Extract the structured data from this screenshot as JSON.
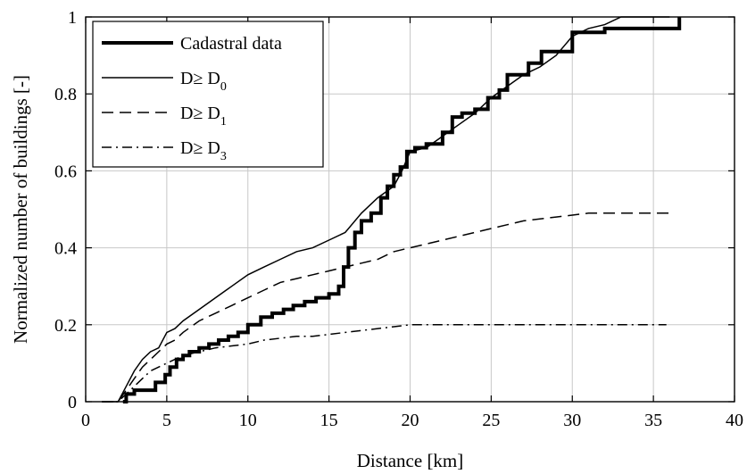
{
  "chart_data": {
    "type": "line",
    "title": "",
    "xlabel": "Distance [km]",
    "ylabel": "Normalized number of buildings [-]",
    "xlim": [
      0,
      40
    ],
    "ylim": [
      0,
      1
    ],
    "xticks": [
      0,
      5,
      10,
      15,
      20,
      25,
      30,
      35,
      40
    ],
    "yticks": [
      0,
      0.2,
      0.4,
      0.6,
      0.8,
      1
    ],
    "ytick_labels": [
      "0",
      "0.2",
      "0.4",
      "0.6",
      "0.8",
      "1"
    ],
    "grid": true,
    "legend_position": "top-left",
    "series": [
      {
        "name": "Cadastral data",
        "name_base": "Cadastral data",
        "name_sub": "",
        "style": "solid",
        "weight": "thick",
        "x": [
          2.3,
          2.5,
          2.5,
          3.0,
          3.0,
          4.3,
          4.3,
          4.9,
          4.9,
          5.2,
          5.2,
          5.6,
          5.6,
          6.0,
          6.0,
          6.4,
          6.4,
          7.0,
          7.0,
          7.6,
          7.6,
          8.2,
          8.2,
          8.8,
          8.8,
          9.4,
          9.4,
          10.0,
          10.0,
          10.8,
          10.8,
          11.5,
          11.5,
          12.2,
          12.2,
          12.8,
          12.8,
          13.5,
          13.5,
          14.2,
          14.2,
          15.0,
          15.0,
          15.6,
          15.6,
          15.9,
          15.9,
          16.2,
          16.2,
          16.6,
          16.6,
          17.0,
          17.0,
          17.6,
          17.6,
          18.2,
          18.2,
          18.6,
          18.6,
          19.0,
          19.0,
          19.4,
          19.4,
          19.8,
          19.8,
          20.3,
          20.3,
          21.0,
          21.0,
          22.0,
          22.0,
          22.6,
          22.6,
          23.2,
          23.2,
          24.0,
          24.0,
          24.8,
          24.8,
          25.5,
          25.5,
          26.0,
          26.0,
          27.3,
          27.3,
          28.1,
          28.1,
          30.0,
          30.0,
          32.0,
          32.0,
          36.6,
          36.6
        ],
        "y": [
          0.0,
          0.0,
          0.02,
          0.02,
          0.03,
          0.03,
          0.05,
          0.05,
          0.07,
          0.07,
          0.09,
          0.09,
          0.11,
          0.11,
          0.12,
          0.12,
          0.13,
          0.13,
          0.14,
          0.14,
          0.15,
          0.15,
          0.16,
          0.16,
          0.17,
          0.17,
          0.18,
          0.18,
          0.2,
          0.2,
          0.22,
          0.22,
          0.23,
          0.23,
          0.24,
          0.24,
          0.25,
          0.25,
          0.26,
          0.26,
          0.27,
          0.27,
          0.28,
          0.28,
          0.3,
          0.3,
          0.35,
          0.35,
          0.4,
          0.4,
          0.44,
          0.44,
          0.47,
          0.47,
          0.49,
          0.49,
          0.53,
          0.53,
          0.56,
          0.56,
          0.59,
          0.59,
          0.61,
          0.61,
          0.65,
          0.65,
          0.66,
          0.66,
          0.67,
          0.67,
          0.7,
          0.7,
          0.74,
          0.74,
          0.75,
          0.75,
          0.76,
          0.76,
          0.79,
          0.79,
          0.81,
          0.81,
          0.85,
          0.85,
          0.88,
          0.88,
          0.91,
          0.91,
          0.96,
          0.96,
          0.97,
          0.97,
          1.0
        ]
      },
      {
        "name": "D≥ D0",
        "name_base": "D≥  D",
        "name_sub": "0",
        "style": "solid",
        "weight": "thin",
        "x": [
          1.0,
          2.0,
          2.5,
          3.0,
          3.5,
          4.0,
          4.5,
          5.0,
          5.5,
          6.0,
          7.0,
          8.0,
          9.0,
          10.0,
          11.0,
          12.0,
          13.0,
          14.0,
          15.0,
          16.0,
          17.0,
          18.0,
          19.0,
          19.5,
          20.0,
          21.0,
          22.0,
          23.0,
          24.0,
          25.0,
          26.0,
          27.0,
          28.0,
          29.0,
          30.0,
          31.0,
          32.0,
          33.0,
          34.0,
          35.0,
          36.0
        ],
        "y": [
          0.0,
          0.0,
          0.04,
          0.08,
          0.11,
          0.13,
          0.14,
          0.18,
          0.19,
          0.21,
          0.24,
          0.27,
          0.3,
          0.33,
          0.35,
          0.37,
          0.39,
          0.4,
          0.42,
          0.44,
          0.49,
          0.53,
          0.56,
          0.6,
          0.65,
          0.66,
          0.69,
          0.72,
          0.75,
          0.79,
          0.82,
          0.85,
          0.87,
          0.9,
          0.95,
          0.97,
          0.98,
          1.0,
          1.0,
          1.0,
          1.0
        ]
      },
      {
        "name": "D≥ D1",
        "name_base": "D≥  D",
        "name_sub": "1",
        "style": "dashed",
        "weight": "thin",
        "x": [
          1.0,
          2.0,
          2.5,
          3.0,
          3.5,
          4.0,
          4.5,
          5.0,
          5.5,
          6.0,
          7.0,
          8.0,
          9.0,
          10.0,
          11.0,
          12.0,
          13.0,
          14.0,
          15.0,
          16.0,
          17.0,
          18.0,
          19.0,
          20.0,
          21.0,
          22.0,
          23.0,
          24.0,
          25.0,
          26.0,
          27.0,
          28.0,
          29.0,
          30.0,
          31.0,
          32.0,
          33.0,
          34.0,
          35.0,
          36.0
        ],
        "y": [
          0.0,
          0.0,
          0.03,
          0.06,
          0.09,
          0.11,
          0.13,
          0.15,
          0.16,
          0.18,
          0.21,
          0.23,
          0.25,
          0.27,
          0.29,
          0.31,
          0.32,
          0.33,
          0.34,
          0.35,
          0.36,
          0.37,
          0.39,
          0.4,
          0.41,
          0.42,
          0.43,
          0.44,
          0.45,
          0.46,
          0.47,
          0.475,
          0.48,
          0.485,
          0.49,
          0.49,
          0.49,
          0.49,
          0.49,
          0.49
        ]
      },
      {
        "name": "D≥ D3",
        "name_base": "D≥  D",
        "name_sub": "3",
        "style": "dashdot",
        "weight": "thin",
        "x": [
          1.0,
          2.0,
          2.5,
          3.0,
          3.5,
          4.0,
          4.5,
          5.0,
          5.5,
          6.0,
          7.0,
          8.0,
          9.0,
          10.0,
          11.0,
          12.0,
          13.0,
          14.0,
          15.0,
          16.0,
          17.0,
          18.0,
          19.0,
          20.0,
          22.0,
          25.0,
          30.0,
          35.0,
          35.8
        ],
        "y": [
          0.0,
          0.0,
          0.02,
          0.04,
          0.06,
          0.08,
          0.09,
          0.1,
          0.11,
          0.12,
          0.13,
          0.14,
          0.145,
          0.15,
          0.16,
          0.165,
          0.17,
          0.17,
          0.175,
          0.18,
          0.185,
          0.19,
          0.195,
          0.2,
          0.2,
          0.2,
          0.2,
          0.2,
          0.2
        ]
      }
    ]
  }
}
